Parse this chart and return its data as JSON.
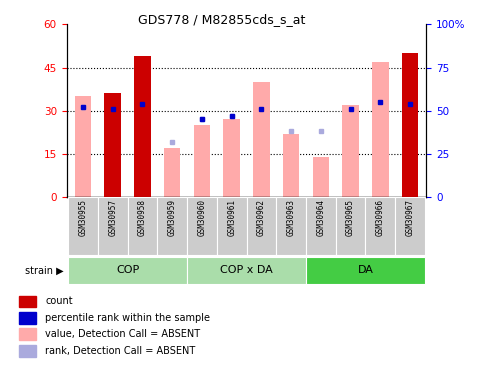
{
  "title": "GDS778 / M82855cds_s_at",
  "samples": [
    "GSM30955",
    "GSM30957",
    "GSM30958",
    "GSM30959",
    "GSM30960",
    "GSM30961",
    "GSM30962",
    "GSM30963",
    "GSM30964",
    "GSM30965",
    "GSM30966",
    "GSM30967"
  ],
  "count_values": [
    0,
    36,
    49,
    0,
    0,
    0,
    0,
    0,
    0,
    0,
    0,
    50
  ],
  "pink_values": [
    35,
    0,
    0,
    17,
    25,
    27,
    40,
    22,
    14,
    32,
    47,
    0
  ],
  "blue_rank_pct": [
    52,
    51,
    54,
    32,
    45,
    47,
    51,
    38,
    38,
    51,
    55,
    54
  ],
  "has_blue_dot": [
    true,
    true,
    true,
    false,
    true,
    true,
    true,
    false,
    false,
    true,
    true,
    true
  ],
  "has_light_blue": [
    true,
    false,
    false,
    true,
    true,
    true,
    false,
    true,
    true,
    false,
    false,
    false
  ],
  "light_blue_pct": [
    52,
    0,
    0,
    32,
    45,
    47,
    0,
    38,
    38,
    0,
    0,
    0
  ],
  "ylim_left": [
    0,
    60
  ],
  "ylim_right": [
    0,
    100
  ],
  "yticks_left": [
    0,
    15,
    30,
    45,
    60
  ],
  "yticks_right": [
    0,
    25,
    50,
    75,
    100
  ],
  "count_color": "#CC0000",
  "pink_color": "#FFAAAA",
  "blue_color": "#0000CC",
  "lightblue_color": "#AAAADD",
  "groups": [
    {
      "label": "COP",
      "start": 0,
      "end": 3,
      "color": "#AADDAA"
    },
    {
      "label": "COP x DA",
      "start": 4,
      "end": 7,
      "color": "#AADDAA"
    },
    {
      "label": "DA",
      "start": 8,
      "end": 11,
      "color": "#44CC44"
    }
  ],
  "legend_items": [
    {
      "color": "#CC0000",
      "label": "count"
    },
    {
      "color": "#0000CC",
      "label": "percentile rank within the sample"
    },
    {
      "color": "#FFAAAA",
      "label": "value, Detection Call = ABSENT"
    },
    {
      "color": "#AAAADD",
      "label": "rank, Detection Call = ABSENT"
    }
  ]
}
